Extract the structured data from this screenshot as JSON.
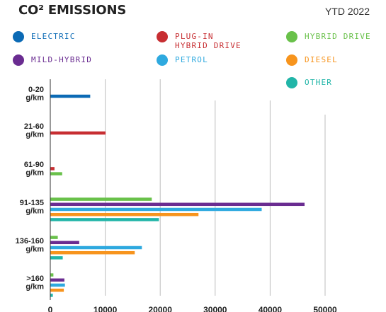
{
  "title": "CO² EMISSIONS",
  "period": "YTD 2022",
  "legend": [
    {
      "label": "ELECTRIC",
      "color": "#0b6ab5"
    },
    {
      "label": "PLUG-IN\nHYBRID DRIVE",
      "color": "#c72e32"
    },
    {
      "label": "HYBRID DRIVE",
      "color": "#69c14a"
    },
    {
      "label": "MILD-HYBRID",
      "color": "#6a2c91"
    },
    {
      "label": "PETROL",
      "color": "#2ea9df"
    },
    {
      "label": "DIESEL",
      "color": "#f7941d"
    },
    {
      "label": "OTHER",
      "color": "#21b5a8"
    }
  ],
  "chart_data": {
    "type": "bar",
    "orientation": "horizontal",
    "title": "CO² EMISSIONS",
    "xlim": [
      0,
      50000
    ],
    "xticks": [
      "0",
      "10000",
      "20000",
      "30000",
      "40000",
      "50000"
    ],
    "grid": true,
    "categories": [
      [
        "0-20",
        "g/km"
      ],
      [
        "21-60",
        "g/km"
      ],
      [
        "61-90",
        "g/km"
      ],
      [
        "91-135",
        "g/km"
      ],
      [
        "136-160",
        "g/km"
      ],
      [
        ">160",
        "g/km"
      ]
    ],
    "series": [
      {
        "name": "ELECTRIC",
        "color": "#0b6ab5",
        "values": [
          7200,
          0,
          0,
          0,
          0,
          0
        ]
      },
      {
        "name": "PLUG-IN HYBRID DRIVE",
        "color": "#c72e32",
        "values": [
          0,
          10000,
          700,
          0,
          0,
          0
        ]
      },
      {
        "name": "HYBRID DRIVE",
        "color": "#69c14a",
        "values": [
          0,
          0,
          2100,
          18400,
          1300,
          500
        ]
      },
      {
        "name": "MILD-HYBRID",
        "color": "#6a2c91",
        "values": [
          0,
          0,
          0,
          46200,
          5200,
          2500
        ]
      },
      {
        "name": "PETROL",
        "color": "#2ea9df",
        "values": [
          0,
          0,
          0,
          38400,
          16600,
          2600
        ]
      },
      {
        "name": "DIESEL",
        "color": "#f7941d",
        "values": [
          0,
          0,
          0,
          26900,
          15300,
          2400
        ]
      },
      {
        "name": "OTHER",
        "color": "#21b5a8",
        "values": [
          0,
          0,
          0,
          19700,
          2200,
          400
        ]
      }
    ]
  }
}
